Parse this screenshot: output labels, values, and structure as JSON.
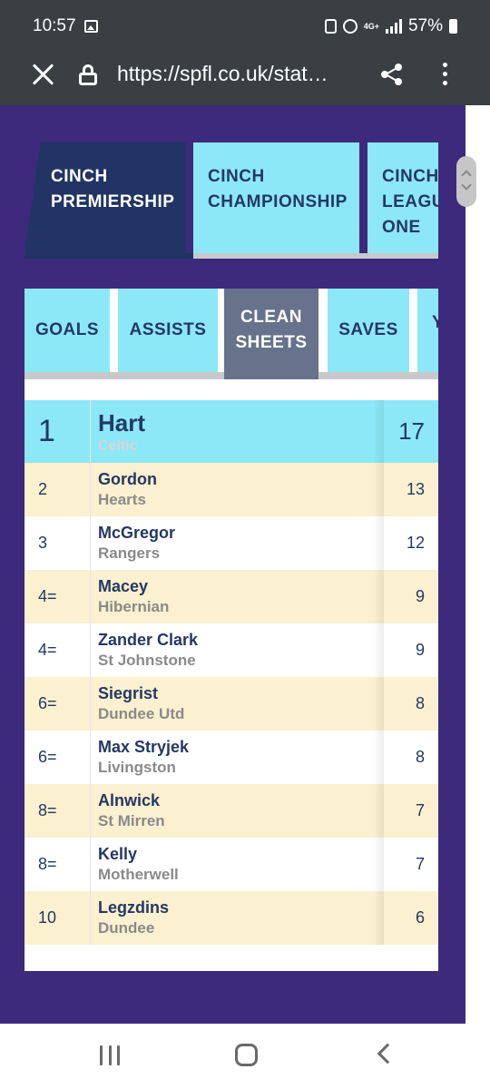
{
  "status_bar": {
    "time": "10:57",
    "network": "4G+",
    "battery": "57%"
  },
  "browser": {
    "url": "https://spfl.co.uk/stat…"
  },
  "league_tabs": [
    {
      "label": "CINCH PREMIERSHIP",
      "line1": "CINCH",
      "line2": "PREMIERSHIP",
      "line3": "",
      "active": true
    },
    {
      "label": "CINCH CHAMPIONSHIP",
      "line1": "CINCH",
      "line2": "CHAMPIONSHIP",
      "line3": "",
      "active": false
    },
    {
      "label": "CINCH LEAGUE ONE",
      "line1": "CINCH",
      "line2": "LEAGU",
      "line3": "ONE",
      "active": false
    }
  ],
  "stat_tabs": [
    {
      "label": "GOALS",
      "line1": "GOALS",
      "line2": "",
      "active": false
    },
    {
      "label": "ASSISTS",
      "line1": "ASSISTS",
      "line2": "",
      "active": false
    },
    {
      "label": "CLEAN SHEETS",
      "line1": "CLEAN",
      "line2": "SHEETS",
      "active": true
    },
    {
      "label": "SAVES",
      "line1": "SAVES",
      "line2": "",
      "active": false
    },
    {
      "label": "Y",
      "line1": "Y",
      "line2": "",
      "active": false
    }
  ],
  "leaderboard": {
    "rows": [
      {
        "rank": "1",
        "name": "Hart",
        "club": "Celtic",
        "value": "17"
      },
      {
        "rank": "2",
        "name": "Gordon",
        "club": "Hearts",
        "value": "13"
      },
      {
        "rank": "3",
        "name": "McGregor",
        "club": "Rangers",
        "value": "12"
      },
      {
        "rank": "4=",
        "name": "Macey",
        "club": "Hibernian",
        "value": "9"
      },
      {
        "rank": "4=",
        "name": "Zander Clark",
        "club": "St Johnstone",
        "value": "9"
      },
      {
        "rank": "6=",
        "name": "Siegrist",
        "club": "Dundee Utd",
        "value": "8"
      },
      {
        "rank": "6=",
        "name": "Max Stryjek",
        "club": "Livingston",
        "value": "8"
      },
      {
        "rank": "8=",
        "name": "Alnwick",
        "club": "St Mirren",
        "value": "7"
      },
      {
        "rank": "8=",
        "name": "Kelly",
        "club": "Motherwell",
        "value": "7"
      },
      {
        "rank": "10",
        "name": "Legzdins",
        "club": "Dundee",
        "value": "6"
      }
    ]
  },
  "colors": {
    "page_background": "#3d2a7c",
    "tab_light": "#8ce8f7",
    "tab_dark": "#213463",
    "stat_tab_active": "#66738b",
    "row_alt": "#fbf0cf",
    "text_navy": "#243863"
  }
}
